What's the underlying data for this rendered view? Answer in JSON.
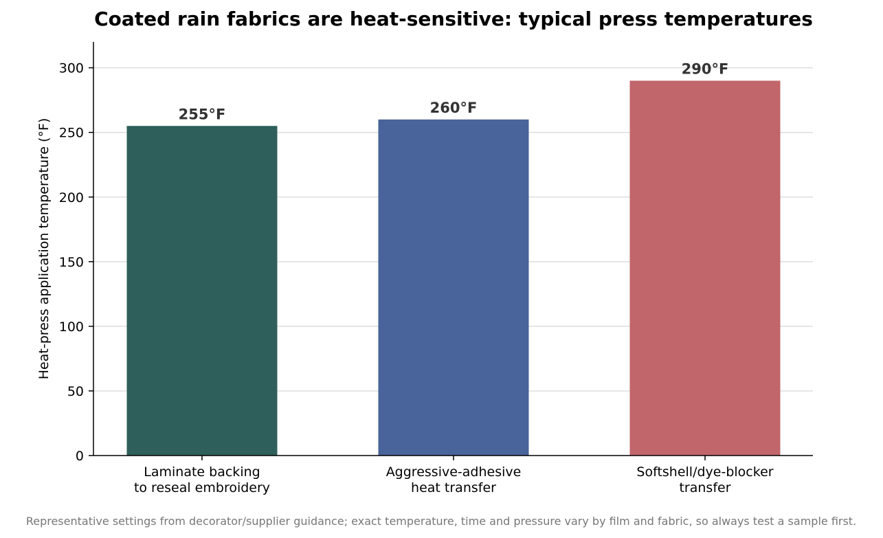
{
  "chart_data": {
    "type": "bar",
    "title": "Coated rain fabrics are heat-sensitive: typical press temperatures",
    "ylabel": "Heat-press application temperature (°F)",
    "xlabel": "",
    "ylim": [
      0,
      320
    ],
    "yticks": [
      0,
      50,
      100,
      150,
      200,
      250,
      300
    ],
    "grid": "horizontal",
    "categories": [
      [
        "Laminate backing",
        "to reseal embroidery"
      ],
      [
        "Aggressive-adhesive",
        "heat transfer"
      ],
      [
        "Softshell/dye-blocker",
        "transfer"
      ]
    ],
    "values": [
      255,
      260,
      290
    ],
    "data_labels": [
      "255°F",
      "260°F",
      "290°F"
    ],
    "colors": [
      "#2e5f5a",
      "#49639b",
      "#c1666b"
    ]
  },
  "footnote": "Representative settings from decorator/supplier guidance; exact temperature, time and pressure vary by film and fabric, so always test a sample first."
}
